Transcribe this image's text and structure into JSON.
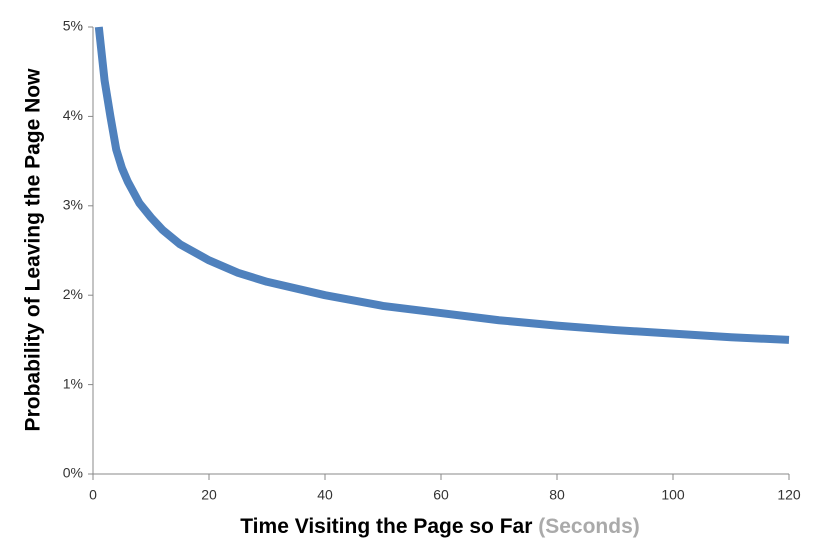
{
  "chart_data": {
    "type": "line",
    "ylabel": "Probability of Leaving the Page Now",
    "xlabel": "Time Visiting the Page so Far",
    "xlabel_unit": "(Seconds)",
    "x": [
      1,
      2,
      3,
      4,
      5,
      6,
      8,
      10,
      12,
      15,
      20,
      25,
      30,
      40,
      50,
      60,
      70,
      80,
      90,
      100,
      110,
      120
    ],
    "series": [
      {
        "color": "#4f81bd",
        "values": [
          5.0,
          4.4,
          4.0,
          3.63,
          3.42,
          3.27,
          3.03,
          2.87,
          2.73,
          2.57,
          2.39,
          2.25,
          2.15,
          2.0,
          1.88,
          1.8,
          1.72,
          1.66,
          1.61,
          1.57,
          1.53,
          1.5
        ]
      }
    ],
    "xlim": [
      0,
      120
    ],
    "xticks": [
      0,
      20,
      40,
      60,
      80,
      100,
      120
    ],
    "ylim": [
      0,
      5
    ],
    "yticks": [
      {
        "value": 0,
        "label": "0%"
      },
      {
        "value": 1,
        "label": "1%"
      },
      {
        "value": 2,
        "label": "2%"
      },
      {
        "value": 3,
        "label": "3%"
      },
      {
        "value": 4,
        "label": "4%"
      },
      {
        "value": 5,
        "label": "5%"
      }
    ]
  }
}
